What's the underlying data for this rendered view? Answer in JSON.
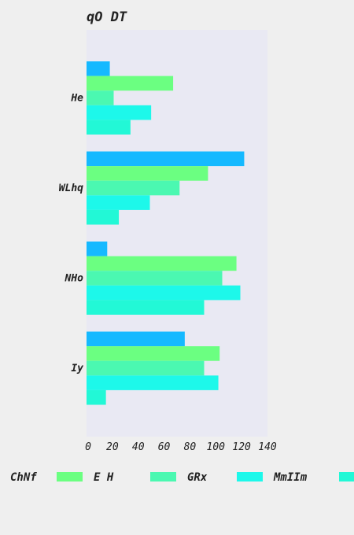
{
  "chart_data": {
    "type": "bar",
    "orientation": "horizontal",
    "title": "qO DT",
    "xlabel": "",
    "ylabel": "",
    "categories": [
      "He",
      "WLhq",
      "NHo",
      "Iy"
    ],
    "xlim": [
      0,
      140
    ],
    "xticks": [
      0,
      20,
      40,
      60,
      80,
      100,
      120,
      140
    ],
    "grid": false,
    "legend_position": "bottom",
    "series": [
      {
        "name": "ChNf",
        "color": "#15b9ff",
        "values": [
          18,
          122,
          16,
          76
        ]
      },
      {
        "name": "E H",
        "color": "#6bff81",
        "values": [
          67,
          94,
          116,
          103
        ]
      },
      {
        "name": "GRx",
        "color": "#4bf8b1",
        "values": [
          21,
          72,
          105,
          91
        ]
      },
      {
        "name": "MmIIm",
        "color": "#1df8ea",
        "values": [
          50,
          49,
          119,
          102
        ]
      },
      {
        "color": "#22f8d6",
        "values": [
          34,
          25,
          91,
          15
        ]
      }
    ],
    "plot_background": "#e9e9f3",
    "page_background": "#efefef"
  }
}
